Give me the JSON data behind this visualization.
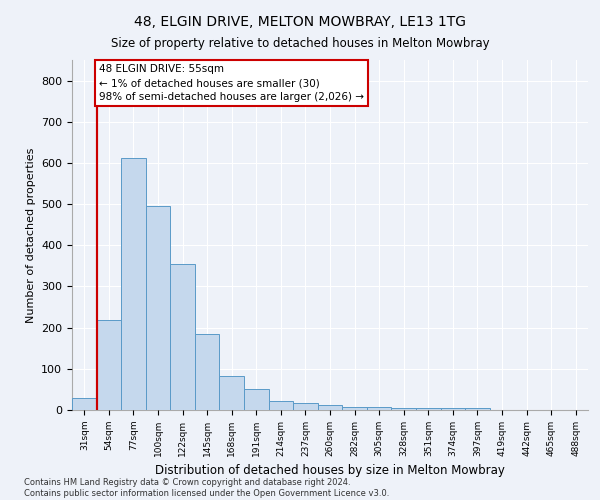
{
  "title": "48, ELGIN DRIVE, MELTON MOWBRAY, LE13 1TG",
  "subtitle": "Size of property relative to detached houses in Melton Mowbray",
  "xlabel": "Distribution of detached houses by size in Melton Mowbray",
  "ylabel": "Number of detached properties",
  "categories": [
    "31sqm",
    "54sqm",
    "77sqm",
    "100sqm",
    "122sqm",
    "145sqm",
    "168sqm",
    "191sqm",
    "214sqm",
    "237sqm",
    "260sqm",
    "282sqm",
    "305sqm",
    "328sqm",
    "351sqm",
    "374sqm",
    "397sqm",
    "419sqm",
    "442sqm",
    "465sqm",
    "488sqm"
  ],
  "values": [
    30,
    218,
    612,
    495,
    355,
    185,
    83,
    52,
    22,
    17,
    13,
    7,
    7,
    5,
    5,
    5,
    5,
    0,
    0,
    0,
    0
  ],
  "bar_color": "#c5d8ed",
  "bar_edge_color": "#5a9ac8",
  "annotation_text_line1": "48 ELGIN DRIVE: 55sqm",
  "annotation_text_line2": "← 1% of detached houses are smaller (30)",
  "annotation_text_line3": "98% of semi-detached houses are larger (2,026) →",
  "ylim": [
    0,
    850
  ],
  "yticks": [
    0,
    100,
    200,
    300,
    400,
    500,
    600,
    700,
    800
  ],
  "footer_line1": "Contains HM Land Registry data © Crown copyright and database right 2024.",
  "footer_line2": "Contains public sector information licensed under the Open Government Licence v3.0.",
  "bg_color": "#eef2f9",
  "grid_color": "#ffffff",
  "annotation_box_color": "#ffffff",
  "annotation_box_edge": "#cc0000",
  "red_line_x": 0.5
}
